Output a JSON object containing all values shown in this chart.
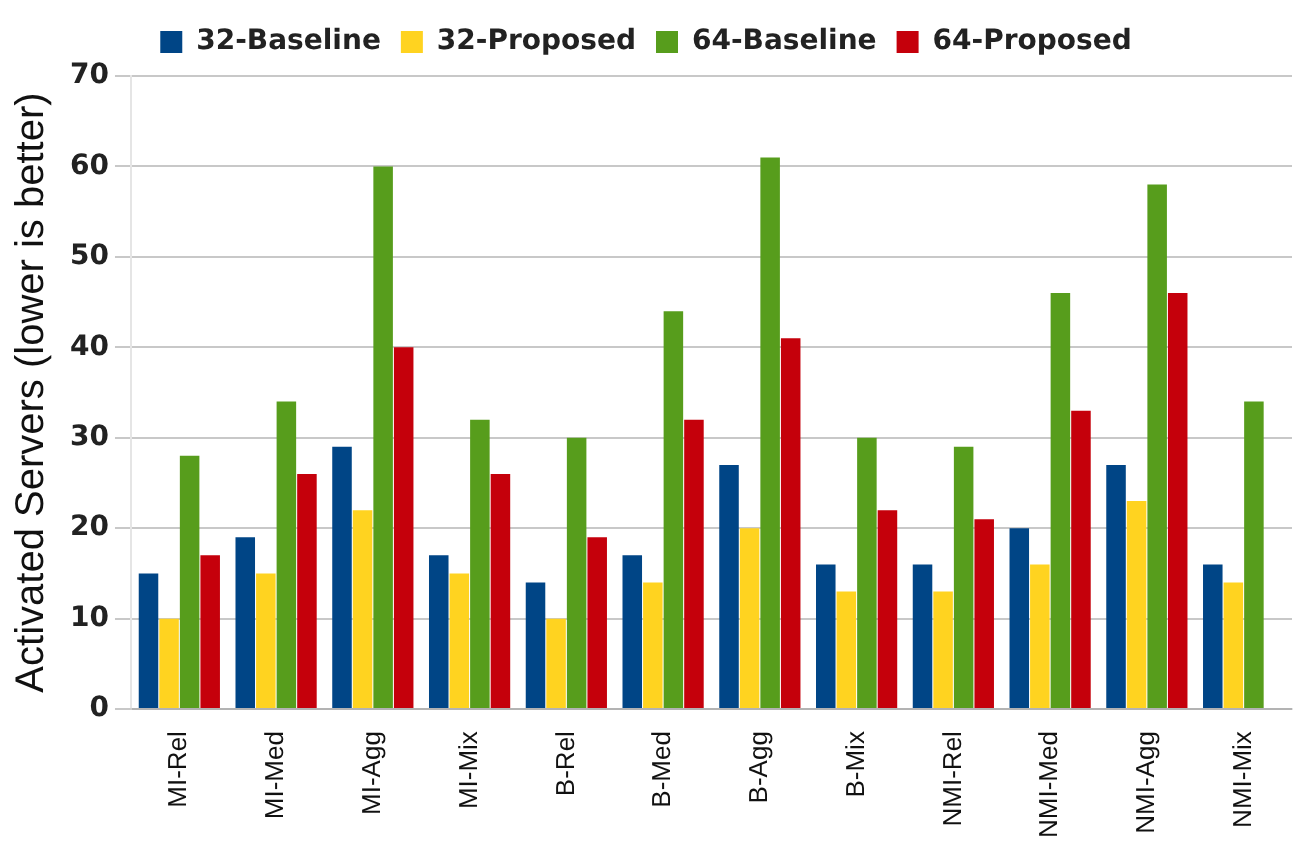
{
  "chart_data": {
    "type": "bar",
    "ylabel": "Activated Servers (lower is better)",
    "categories": [
      "MI-Rel",
      "MI-Med",
      "MI-Agg",
      "MI-Mix",
      "B-Rel",
      "B-Med",
      "B-Agg",
      "B-Mix",
      "NMI-Rel",
      "NMI-Med",
      "NMI-Agg",
      "NMI-Mix"
    ],
    "series": [
      {
        "name": "32-Baseline",
        "color": "#004586",
        "values": [
          15,
          19,
          29,
          17,
          14,
          17,
          27,
          16,
          16,
          20,
          27,
          16
        ]
      },
      {
        "name": "32-Proposed",
        "color": "#ffd320",
        "values": [
          10,
          15,
          22,
          15,
          10,
          14,
          20,
          13,
          13,
          16,
          23,
          14
        ]
      },
      {
        "name": "64-Baseline",
        "color": "#579d1c",
        "values": [
          28,
          34,
          60,
          32,
          30,
          44,
          61,
          30,
          29,
          46,
          58,
          34
        ]
      },
      {
        "name": "64-Proposed",
        "color": "#c5000b",
        "values": [
          17,
          26,
          40,
          26,
          19,
          32,
          41,
          22,
          21,
          33,
          46,
          null
        ]
      }
    ],
    "ylim": [
      0,
      70
    ],
    "yticks": [
      0,
      10,
      20,
      30,
      40,
      50,
      60,
      70
    ],
    "grid": "y",
    "legend": "top"
  }
}
